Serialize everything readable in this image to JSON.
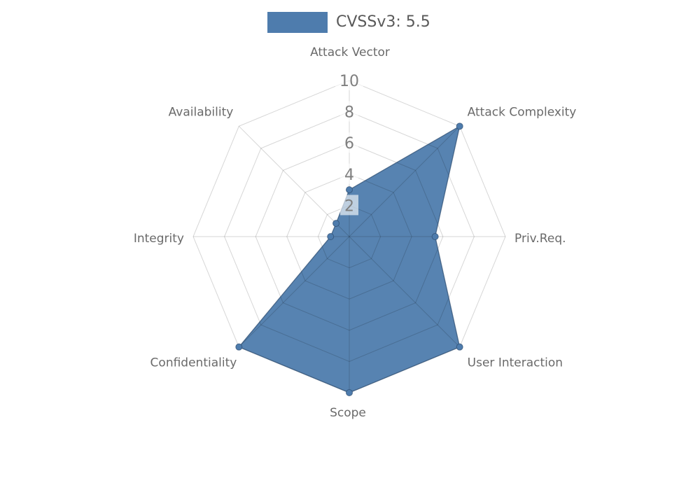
{
  "legend": {
    "label": "CVSSv3: 5.5",
    "swatch_color": "#4e7cad"
  },
  "colors": {
    "series": "#4e7cad",
    "series_outline": "rgba(47,79,115,0.75)",
    "grid": "rgba(0,0,0,0.16)",
    "tick_text": "#7f7f7f",
    "category_text": "#6a6a6a",
    "legend_text": "#595959",
    "background": "#ffffff"
  },
  "chart_data": {
    "type": "radar",
    "title": "CVSSv3: 5.5",
    "categories": [
      "Attack Vector",
      "Attack Complexity",
      "Priv.Req.",
      "User Interaction",
      "Scope",
      "Confidentiality",
      "Integrity",
      "Availability"
    ],
    "series": [
      {
        "name": "CVSSv3: 5.5",
        "values": [
          3,
          10,
          5.5,
          10,
          10,
          10,
          1.2,
          1.2
        ]
      }
    ],
    "ticks": [
      2,
      4,
      6,
      8,
      10
    ],
    "rmax": 10,
    "grid": true,
    "legend_position": "top"
  }
}
